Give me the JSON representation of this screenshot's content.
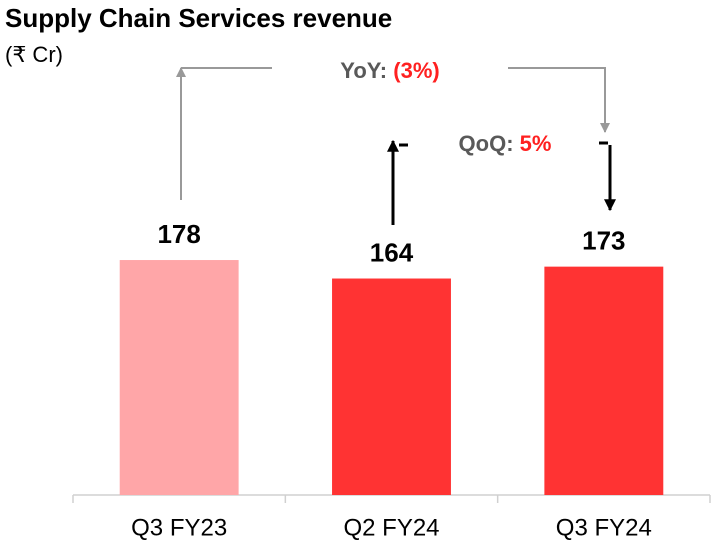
{
  "chart_data": {
    "type": "bar",
    "title": "Supply Chain Services revenue",
    "subtitle": "(₹ Cr)",
    "categories": [
      "Q3 FY23",
      "Q2 FY24",
      "Q3 FY24"
    ],
    "values": [
      178,
      164,
      173
    ],
    "colors": [
      "#ffa6a8",
      "#ff3333",
      "#ff3333"
    ],
    "annotations": [
      {
        "label": "YoY:",
        "value": "(3%)"
      },
      {
        "label": "QoQ:",
        "value": "5%"
      }
    ]
  }
}
